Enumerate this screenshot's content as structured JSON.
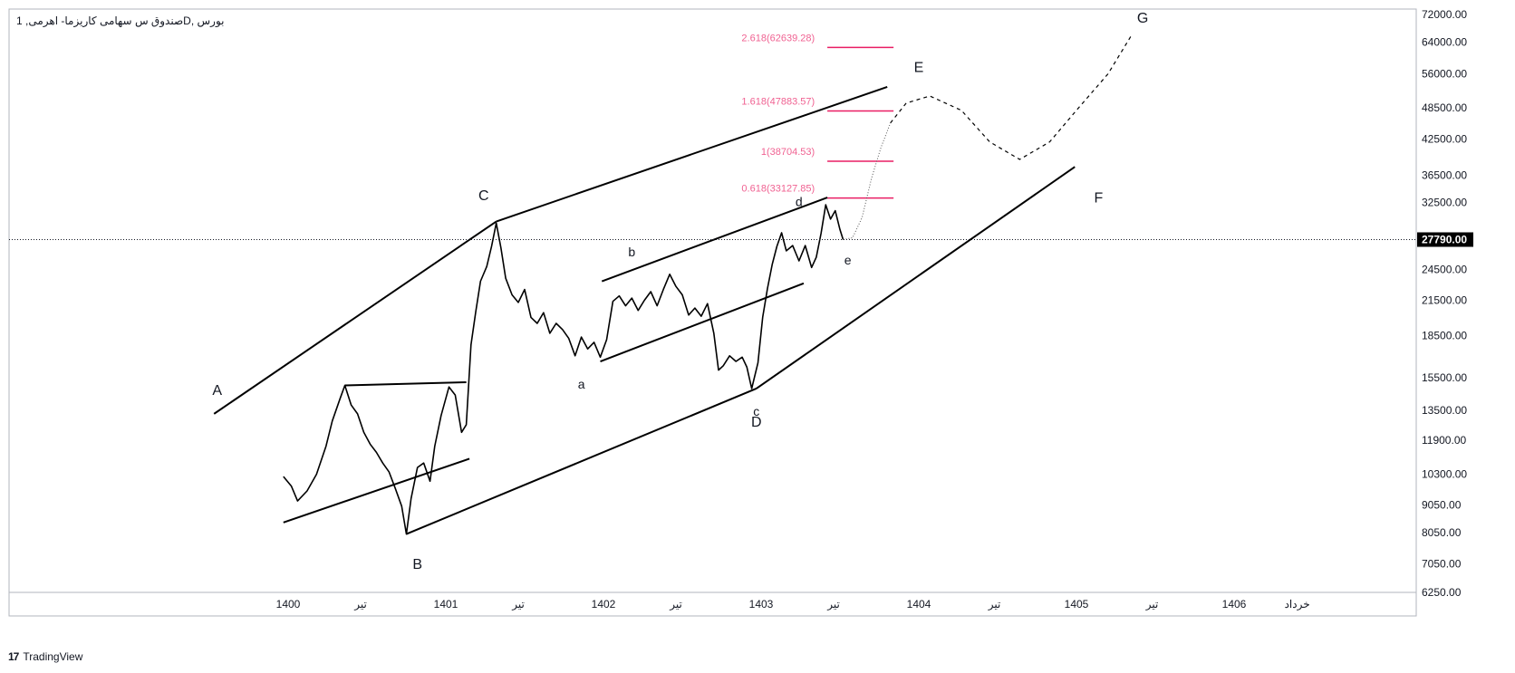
{
  "header": {
    "title": "بورس ,Dصندوق س سهامی کاریزما- اهرمی, 1"
  },
  "footer": {
    "brand": "TradingView",
    "brand_logo": "17"
  },
  "colors": {
    "line": "#000000",
    "fib": "#e91e63",
    "fib_text": "#f06292",
    "price_tag_bg": "#000000",
    "price_tag_text": "#ffffff",
    "frame": "#b2b5be"
  },
  "chart_data": {
    "type": "line",
    "title": "بورس ,Dصندوق س سهامی کاریزما- اهرمی, 1",
    "scale": "log",
    "ylim": [
      5800,
      73000
    ],
    "y_ticks": [
      "72000.00",
      "64000.00",
      "56000.00",
      "48500.00",
      "42500.00",
      "36500.00",
      "32500.00",
      "24500.00",
      "21500.00",
      "18500.00",
      "15500.00",
      "13500.00",
      "11900.00",
      "10300.00",
      "9050.00",
      "8050.00",
      "7050.00",
      "6250.00"
    ],
    "x_ticks": [
      "1400",
      "تیر",
      "1401",
      "تیر",
      "1402",
      "تیر",
      "1403",
      "تیر",
      "1404",
      "تیر",
      "1405",
      "تیر",
      "1406",
      "خرداد"
    ],
    "last_price": "27790.00",
    "wave_labels": [
      "A",
      "B",
      "C",
      "D",
      "E",
      "F",
      "G"
    ],
    "sub_labels": [
      "a",
      "b",
      "c",
      "d",
      "e"
    ],
    "fib_levels": [
      {
        "label": "2.618(62639.28)",
        "value": 62639.28
      },
      {
        "label": "1.618(47883.57)",
        "value": 47883.57
      },
      {
        "label": "1(38704.53)",
        "value": 38704.53
      },
      {
        "label": "0.618(33127.85)",
        "value": 33127.85
      }
    ],
    "price_series": [
      {
        "t": 1399.97,
        "v": 10200
      },
      {
        "t": 1400.02,
        "v": 9800
      },
      {
        "t": 1400.06,
        "v": 9200
      },
      {
        "t": 1400.12,
        "v": 9600
      },
      {
        "t": 1400.18,
        "v": 10300
      },
      {
        "t": 1400.24,
        "v": 11600
      },
      {
        "t": 1400.28,
        "v": 12900
      },
      {
        "t": 1400.33,
        "v": 14200
      },
      {
        "t": 1400.36,
        "v": 15000
      },
      {
        "t": 1400.4,
        "v": 13800
      },
      {
        "t": 1400.44,
        "v": 13300
      },
      {
        "t": 1400.48,
        "v": 12300
      },
      {
        "t": 1400.52,
        "v": 11700
      },
      {
        "t": 1400.56,
        "v": 11300
      },
      {
        "t": 1400.6,
        "v": 10800
      },
      {
        "t": 1400.64,
        "v": 10400
      },
      {
        "t": 1400.68,
        "v": 9700
      },
      {
        "t": 1400.72,
        "v": 9000
      },
      {
        "t": 1400.75,
        "v": 8000
      },
      {
        "t": 1400.78,
        "v": 9300
      },
      {
        "t": 1400.82,
        "v": 10600
      },
      {
        "t": 1400.86,
        "v": 10800
      },
      {
        "t": 1400.9,
        "v": 10000
      },
      {
        "t": 1400.93,
        "v": 11600
      },
      {
        "t": 1400.97,
        "v": 13200
      },
      {
        "t": 1401.02,
        "v": 14900
      },
      {
        "t": 1401.06,
        "v": 14400
      },
      {
        "t": 1401.1,
        "v": 12300
      },
      {
        "t": 1401.13,
        "v": 12700
      },
      {
        "t": 1401.16,
        "v": 17800
      },
      {
        "t": 1401.19,
        "v": 20500
      },
      {
        "t": 1401.22,
        "v": 23300
      },
      {
        "t": 1401.26,
        "v": 24800
      },
      {
        "t": 1401.29,
        "v": 27000
      },
      {
        "t": 1401.32,
        "v": 29800
      },
      {
        "t": 1401.35,
        "v": 26800
      },
      {
        "t": 1401.38,
        "v": 23600
      },
      {
        "t": 1401.42,
        "v": 22000
      },
      {
        "t": 1401.46,
        "v": 21300
      },
      {
        "t": 1401.5,
        "v": 22500
      },
      {
        "t": 1401.54,
        "v": 20000
      },
      {
        "t": 1401.58,
        "v": 19500
      },
      {
        "t": 1401.62,
        "v": 20400
      },
      {
        "t": 1401.66,
        "v": 18700
      },
      {
        "t": 1401.7,
        "v": 19500
      },
      {
        "t": 1401.74,
        "v": 19000
      },
      {
        "t": 1401.78,
        "v": 18300
      },
      {
        "t": 1401.82,
        "v": 17000
      },
      {
        "t": 1401.86,
        "v": 18400
      },
      {
        "t": 1401.9,
        "v": 17500
      },
      {
        "t": 1401.94,
        "v": 18000
      },
      {
        "t": 1401.98,
        "v": 16900
      },
      {
        "t": 1402.02,
        "v": 18200
      },
      {
        "t": 1402.06,
        "v": 21400
      },
      {
        "t": 1402.1,
        "v": 21900
      },
      {
        "t": 1402.14,
        "v": 21000
      },
      {
        "t": 1402.18,
        "v": 21700
      },
      {
        "t": 1402.22,
        "v": 20600
      },
      {
        "t": 1402.26,
        "v": 21500
      },
      {
        "t": 1402.3,
        "v": 22300
      },
      {
        "t": 1402.34,
        "v": 21000
      },
      {
        "t": 1402.38,
        "v": 22500
      },
      {
        "t": 1402.42,
        "v": 24000
      },
      {
        "t": 1402.46,
        "v": 22800
      },
      {
        "t": 1402.5,
        "v": 22000
      },
      {
        "t": 1402.54,
        "v": 20200
      },
      {
        "t": 1402.58,
        "v": 20800
      },
      {
        "t": 1402.62,
        "v": 20100
      },
      {
        "t": 1402.66,
        "v": 21200
      },
      {
        "t": 1402.7,
        "v": 18700
      },
      {
        "t": 1402.73,
        "v": 16000
      },
      {
        "t": 1402.76,
        "v": 16300
      },
      {
        "t": 1402.8,
        "v": 17000
      },
      {
        "t": 1402.84,
        "v": 16600
      },
      {
        "t": 1402.88,
        "v": 16900
      },
      {
        "t": 1402.91,
        "v": 16200
      },
      {
        "t": 1402.94,
        "v": 14800
      },
      {
        "t": 1402.98,
        "v": 16500
      },
      {
        "t": 1403.01,
        "v": 20000
      },
      {
        "t": 1403.04,
        "v": 22600
      },
      {
        "t": 1403.07,
        "v": 25000
      },
      {
        "t": 1403.1,
        "v": 27000
      },
      {
        "t": 1403.13,
        "v": 28600
      },
      {
        "t": 1403.16,
        "v": 26500
      },
      {
        "t": 1403.2,
        "v": 27100
      },
      {
        "t": 1403.24,
        "v": 25400
      },
      {
        "t": 1403.28,
        "v": 27100
      },
      {
        "t": 1403.32,
        "v": 24700
      },
      {
        "t": 1403.35,
        "v": 25800
      },
      {
        "t": 1403.38,
        "v": 28500
      },
      {
        "t": 1403.41,
        "v": 32200
      },
      {
        "t": 1403.44,
        "v": 30300
      },
      {
        "t": 1403.47,
        "v": 31400
      },
      {
        "t": 1403.5,
        "v": 29000
      },
      {
        "t": 1403.52,
        "v": 27790
      }
    ],
    "projection_dotted": [
      {
        "t": 1403.52,
        "v": 27790
      },
      {
        "t": 1403.58,
        "v": 28000
      },
      {
        "t": 1403.64,
        "v": 30500
      },
      {
        "t": 1403.7,
        "v": 36000
      },
      {
        "t": 1403.76,
        "v": 41000
      },
      {
        "t": 1403.82,
        "v": 45500
      }
    ],
    "projection_dashed": [
      {
        "t": 1403.82,
        "v": 45500
      },
      {
        "t": 1403.92,
        "v": 49500
      },
      {
        "t": 1404.07,
        "v": 51000
      },
      {
        "t": 1404.27,
        "v": 48000
      },
      {
        "t": 1404.45,
        "v": 42000
      },
      {
        "t": 1404.64,
        "v": 39000
      },
      {
        "t": 1404.83,
        "v": 42000
      },
      {
        "t": 1405.0,
        "v": 48000
      },
      {
        "t": 1405.2,
        "v": 56000
      },
      {
        "t": 1405.35,
        "v": 66000
      }
    ],
    "trendlines": [
      {
        "from": {
          "t": 1399.53,
          "v": 13300
        },
        "to": {
          "t": 1401.32,
          "v": 30000
        }
      },
      {
        "from": {
          "t": 1401.32,
          "v": 30000
        },
        "to": {
          "t": 1403.8,
          "v": 53000
        }
      },
      {
        "from": {
          "t": 1400.75,
          "v": 8000
        },
        "to": {
          "t": 1402.97,
          "v": 14800
        }
      },
      {
        "from": {
          "t": 1402.97,
          "v": 14800
        },
        "to": {
          "t": 1404.99,
          "v": 37800
        }
      },
      {
        "from": {
          "t": 1399.97,
          "v": 8400
        },
        "to": {
          "t": 1401.15,
          "v": 11000
        }
      },
      {
        "from": {
          "t": 1400.36,
          "v": 15000
        },
        "to": {
          "t": 1401.13,
          "v": 15200
        }
      },
      {
        "from": {
          "t": 1401.98,
          "v": 16600
        },
        "to": {
          "t": 1403.27,
          "v": 23100
        }
      },
      {
        "from": {
          "t": 1401.99,
          "v": 23300
        },
        "to": {
          "t": 1403.42,
          "v": 33200
        }
      }
    ],
    "grid": false
  }
}
